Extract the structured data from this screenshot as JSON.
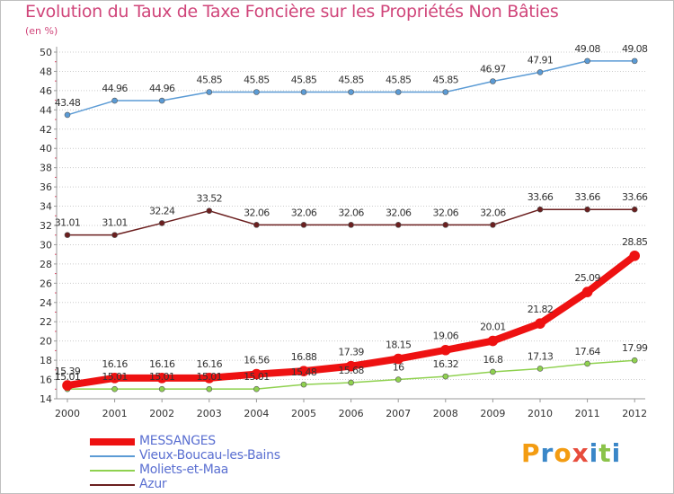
{
  "title": "Evolution du Taux de Taxe Foncière sur les Propriétés Non Bâties",
  "unit_label": "(en %)",
  "brand": {
    "letters": [
      "P",
      "r",
      "o",
      "x",
      "i",
      "t",
      "i"
    ],
    "colors": [
      "#f39c12",
      "#3a87c8",
      "#f39c12",
      "#e74c3c",
      "#3a87c8",
      "#8bc34a",
      "#3a87c8"
    ]
  },
  "chart_data": {
    "type": "line",
    "title": "Evolution du Taux de Taxe Foncière sur les Propriétés Non Bâties",
    "ylabel": "(en %)",
    "x": [
      "2000",
      "2001",
      "2002",
      "2003",
      "2004",
      "2005",
      "2006",
      "2007",
      "2008",
      "2009",
      "2010",
      "2011",
      "2012"
    ],
    "ylim": [
      14,
      50
    ],
    "yticks": [
      14,
      16,
      18,
      20,
      22,
      24,
      26,
      28,
      30,
      32,
      34,
      36,
      38,
      40,
      42,
      44,
      46,
      48,
      50
    ],
    "grid": "horizontal-dotted",
    "legend_position": "bottom-left",
    "series": [
      {
        "name": "MESSANGES",
        "color": "#ee1111",
        "values": [
          15.39,
          16.16,
          16.16,
          16.16,
          16.56,
          16.88,
          17.39,
          18.15,
          19.06,
          20.01,
          21.82,
          25.09,
          28.85
        ],
        "labels": [
          "15.39",
          "16.16",
          "16.16",
          "16.16",
          "16.56",
          "16.88",
          "17.39",
          "18.15",
          "19.06",
          "20.01",
          "21.82",
          "25.09",
          "28.85"
        ]
      },
      {
        "name": "Vieux-Boucau-les-Bains",
        "color": "#5b9bd5",
        "values": [
          43.48,
          44.96,
          44.96,
          45.85,
          45.85,
          45.85,
          45.85,
          45.85,
          45.85,
          46.97,
          47.91,
          49.08,
          49.08
        ],
        "labels": [
          "43.48",
          "44.96",
          "44.96",
          "45.85",
          "45.85",
          "45.85",
          "45.85",
          "45.85",
          "45.85",
          "46.97",
          "47.91",
          "49.08",
          "49.08"
        ]
      },
      {
        "name": "Moliets-et-Maa",
        "color": "#8fd14f",
        "values": [
          15.01,
          15.01,
          15.01,
          15.01,
          15.01,
          15.48,
          15.68,
          16,
          16.32,
          16.8,
          17.13,
          17.64,
          17.99
        ],
        "labels": [
          "15.01",
          "15.01",
          "15.01",
          "15.01",
          "15.01",
          "15.48",
          "15.68",
          "16",
          "16.32",
          "16.8",
          "17.13",
          "17.64",
          "17.99"
        ]
      },
      {
        "name": "Azur",
        "color": "#6b1f1f",
        "values": [
          31.01,
          31.01,
          32.24,
          33.52,
          32.06,
          32.06,
          32.06,
          32.06,
          32.06,
          32.06,
          33.66,
          33.66,
          33.66
        ],
        "labels": [
          "31.01",
          "31.01",
          "32.24",
          "33.52",
          "32.06",
          "32.06",
          "32.06",
          "32.06",
          "32.06",
          "32.06",
          "33.66",
          "33.66",
          "33.66"
        ]
      }
    ]
  }
}
